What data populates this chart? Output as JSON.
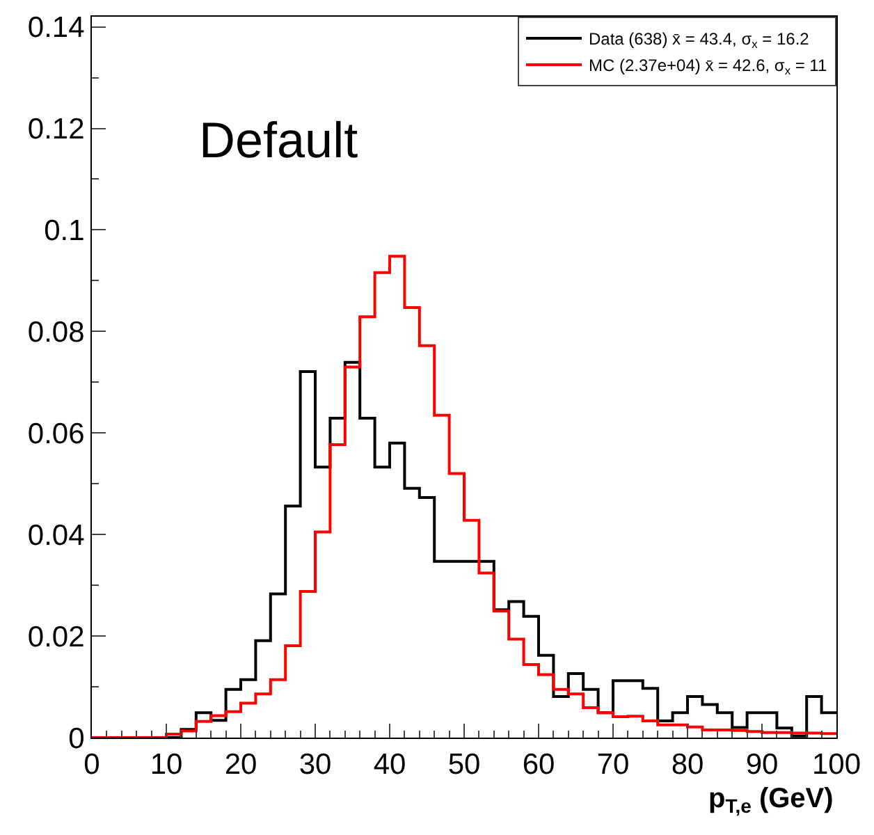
{
  "chart_data": {
    "type": "histogram",
    "xlabel": "p$_{T,e}$ (GeV)",
    "annotations": [
      "Default"
    ],
    "bins": [
      0,
      2,
      4,
      6,
      8,
      10,
      12,
      14,
      16,
      18,
      20,
      22,
      24,
      26,
      28,
      30,
      32,
      34,
      36,
      38,
      40,
      42,
      44,
      46,
      48,
      50,
      52,
      54,
      56,
      58,
      60,
      62,
      64,
      66,
      68,
      70,
      72,
      74,
      76,
      78,
      80,
      82,
      84,
      86,
      88,
      90,
      92,
      94,
      96,
      98,
      100
    ],
    "series": [
      {
        "name": "Data (638) x̄ = 43.4, σ$_{x}$ = 16.2",
        "color": "#000000",
        "values": [
          0,
          0,
          0,
          0,
          0,
          0,
          0.0016,
          0.0049,
          0.0034,
          0.0095,
          0.0114,
          0.0191,
          0.0283,
          0.0456,
          0.0721,
          0.0533,
          0.0629,
          0.0739,
          0.0629,
          0.0533,
          0.058,
          0.0491,
          0.0473,
          0.0347,
          0.0347,
          0.0347,
          0.0347,
          0.0252,
          0.0268,
          0.0239,
          0.0162,
          0.0081,
          0.0126,
          0.0095,
          0.0049,
          0.0112,
          0.0112,
          0.0097,
          0.0033,
          0.0049,
          0.0081,
          0.0065,
          0.0049,
          0.002,
          0.0049,
          0.0049,
          0.0019,
          0.0003,
          0.0081,
          0.0049
        ]
      },
      {
        "name": "MC (2.37e+04) x̄ = 42.6, σ$_{x}$ = 11",
        "color": "#ff0000",
        "values": [
          0,
          0,
          0,
          0,
          0,
          0.0007,
          0.0013,
          0.0032,
          0.0043,
          0.0051,
          0.0068,
          0.0086,
          0.0114,
          0.0181,
          0.0288,
          0.0405,
          0.0577,
          0.073,
          0.0829,
          0.0916,
          0.0948,
          0.0847,
          0.0772,
          0.0635,
          0.052,
          0.0428,
          0.0324,
          0.0249,
          0.0194,
          0.0144,
          0.0124,
          0.0095,
          0.0086,
          0.0059,
          0.0049,
          0.0041,
          0.0042,
          0.0033,
          0.0025,
          0.0025,
          0.0021,
          0.0015,
          0.0015,
          0.0014,
          0.0012,
          0.001,
          0.001,
          0.0009,
          0.0009,
          0.0008
        ]
      }
    ],
    "xlim": [
      0,
      100
    ],
    "xticks": [
      0,
      10,
      20,
      30,
      40,
      50,
      60,
      70,
      80,
      90,
      100
    ],
    "ylim": [
      0,
      0.142
    ],
    "yticks": [
      0,
      0.02,
      0.04,
      0.06,
      0.08,
      0.1,
      0.12,
      0.14
    ],
    "grid": false,
    "legend": "top right"
  }
}
